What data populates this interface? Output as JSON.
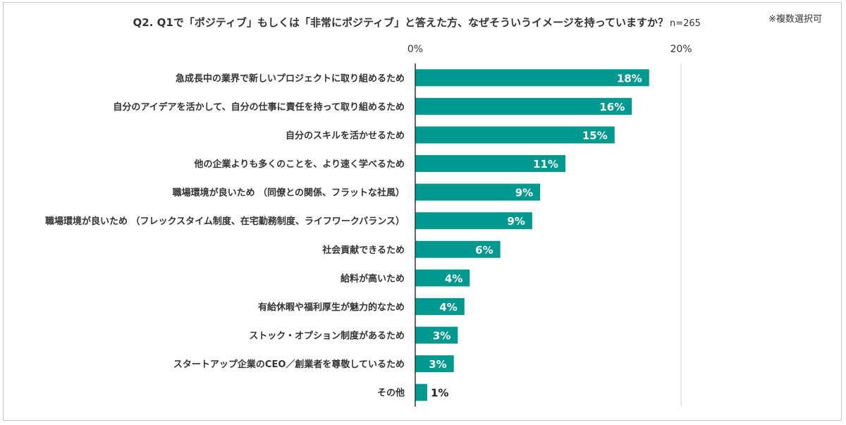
{
  "chart_data": {
    "type": "bar",
    "orientation": "horizontal",
    "title": "Q2. Q1で「ポジティブ」もしくは「非常にポジティブ」と答えた方、なぜそういうイメージを持っていますか？",
    "sample_size": "n=265",
    "note": "※複数選択可",
    "x_ticks": [
      "0%",
      "20%"
    ],
    "xlim": [
      0,
      20
    ],
    "unit": "%",
    "bar_color": "#00998f",
    "grid": false,
    "legend": "none",
    "categories": [
      "急成長中の業界で新しいプロジェクトに取り組めるため",
      "自分のアイデアを活かして、自分の仕事に責任を持って取り組めるため",
      "自分のスキルを活かせるため",
      "他の企業よりも多くのことを、より速く学べるため",
      "職場環境が良いため （同僚との関係、フラットな社風）",
      "職場環境が良いため （フレックスタイム制度、在宅勤務制度、ライフワークバランス）",
      "社会貢献できるため",
      "給料が高いため",
      "有給休暇や福利厚生が魅力的なため",
      "ストック・オプション制度があるため",
      "スタートアップ企業のCEO／創業者を尊敬しているため",
      "その他"
    ],
    "values": [
      17.6,
      16.3,
      15.0,
      11.3,
      9.4,
      8.8,
      6.4,
      4.1,
      3.7,
      3.2,
      2.9,
      0.9
    ],
    "data_labels": [
      "18%",
      "16%",
      "15%",
      "11%",
      "9%",
      "9%",
      "6%",
      "4%",
      "4%",
      "3%",
      "3%",
      "1%"
    ]
  }
}
